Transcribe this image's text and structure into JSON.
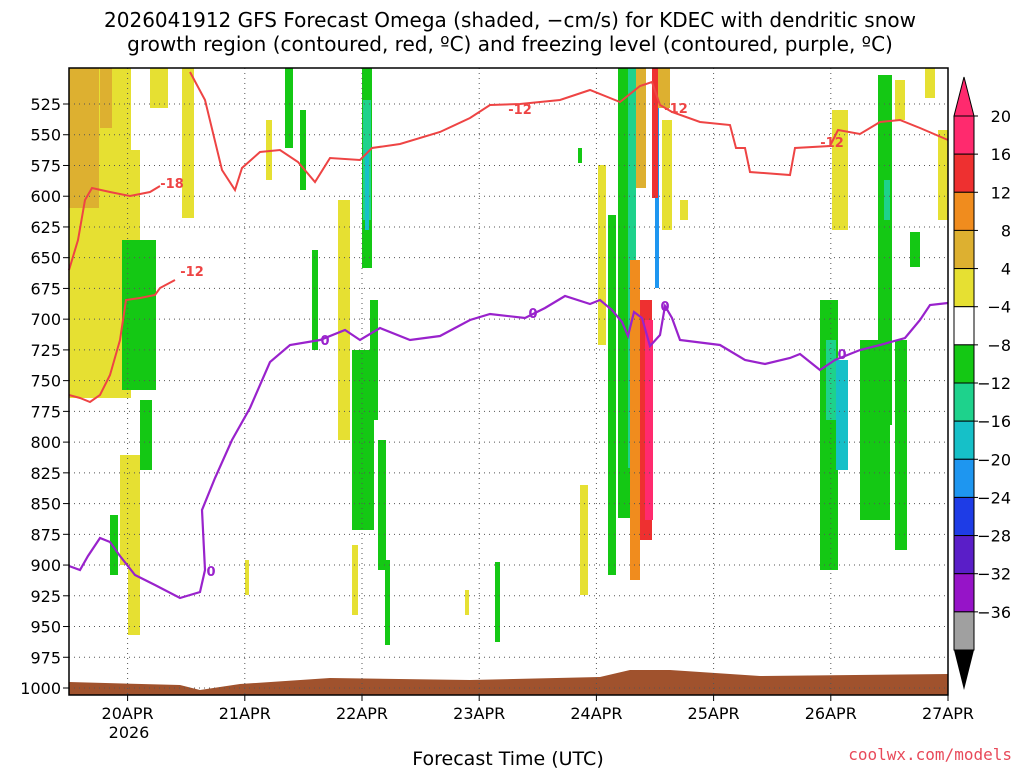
{
  "chart_data": {
    "type": "heatmap",
    "title_line1": "2026041912 GFS Forecast Omega (shaded, −cm/s) for KDEC with dendritic snow",
    "title_line2": "growth region (contoured, red, ºC) and freezing level (contoured, purple, ºC)",
    "xlabel": "Forecast Time (UTC)",
    "x_tick_labels": [
      "20APR",
      "21APR",
      "22APR",
      "23APR",
      "24APR",
      "25APR",
      "26APR",
      "27APR"
    ],
    "x_year_label": "2026",
    "x_range_days": [
      19.5,
      27.0
    ],
    "y_axis": "pressure (hPa), inverted",
    "y_tick_labels": [
      525,
      550,
      575,
      600,
      625,
      650,
      675,
      700,
      725,
      750,
      775,
      800,
      825,
      850,
      875,
      900,
      925,
      950,
      975,
      1000
    ],
    "colorbar": {
      "labels": [
        "20",
        "16",
        "12",
        "8",
        "4",
        "−4",
        "−8",
        "−12",
        "−16",
        "−20",
        "−24",
        "−28",
        "−32",
        "−36"
      ],
      "colors": [
        "#ff2a6e",
        "#ee3030",
        "#f08c1e",
        "#ddb030",
        "#e6e032",
        "#ffffff",
        "#14c814",
        "#1ed28c",
        "#16c0c8",
        "#1e96f0",
        "#1e3ce6",
        "#5a1ec8",
        "#9614c8",
        "#a0a0a0"
      ]
    },
    "contours": {
      "red_labels": [
        "-18",
        "-12",
        "-12",
        "-12",
        "-12"
      ],
      "purple_labels": [
        "0",
        "0",
        "0",
        "0",
        "0"
      ],
      "red_color": "#ee4444",
      "purple_color": "#9922cc"
    },
    "ground_color": "#a0522d",
    "credit": "coolwx.com/models"
  }
}
